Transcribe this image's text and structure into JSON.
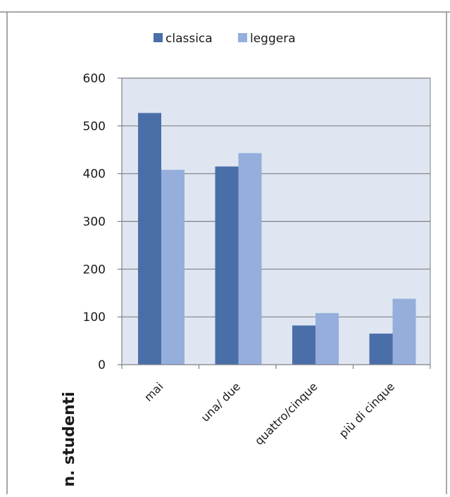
{
  "chart_data": {
    "type": "bar",
    "categories": [
      "mai",
      "una/ due",
      "quattro/cinque",
      "più di cinque"
    ],
    "series": [
      {
        "name": "classica",
        "values": [
          527,
          415,
          82,
          65
        ]
      },
      {
        "name": "leggera",
        "values": [
          408,
          443,
          108,
          138
        ]
      }
    ],
    "yticks": [
      "0",
      "100",
      "200",
      "300",
      "400",
      "500",
      "600"
    ],
    "ylim": [
      0,
      600
    ],
    "ylabel": "n. studenti",
    "xlabel": "",
    "grid": true,
    "legend_position": "top",
    "colors": {
      "classica": "#4a6fa8",
      "leggera": "#95aedb",
      "plot_background": "#dfe6f1",
      "gridline": "#7f8088",
      "axis": "#7f8088",
      "text": "#1a1a1a"
    }
  }
}
